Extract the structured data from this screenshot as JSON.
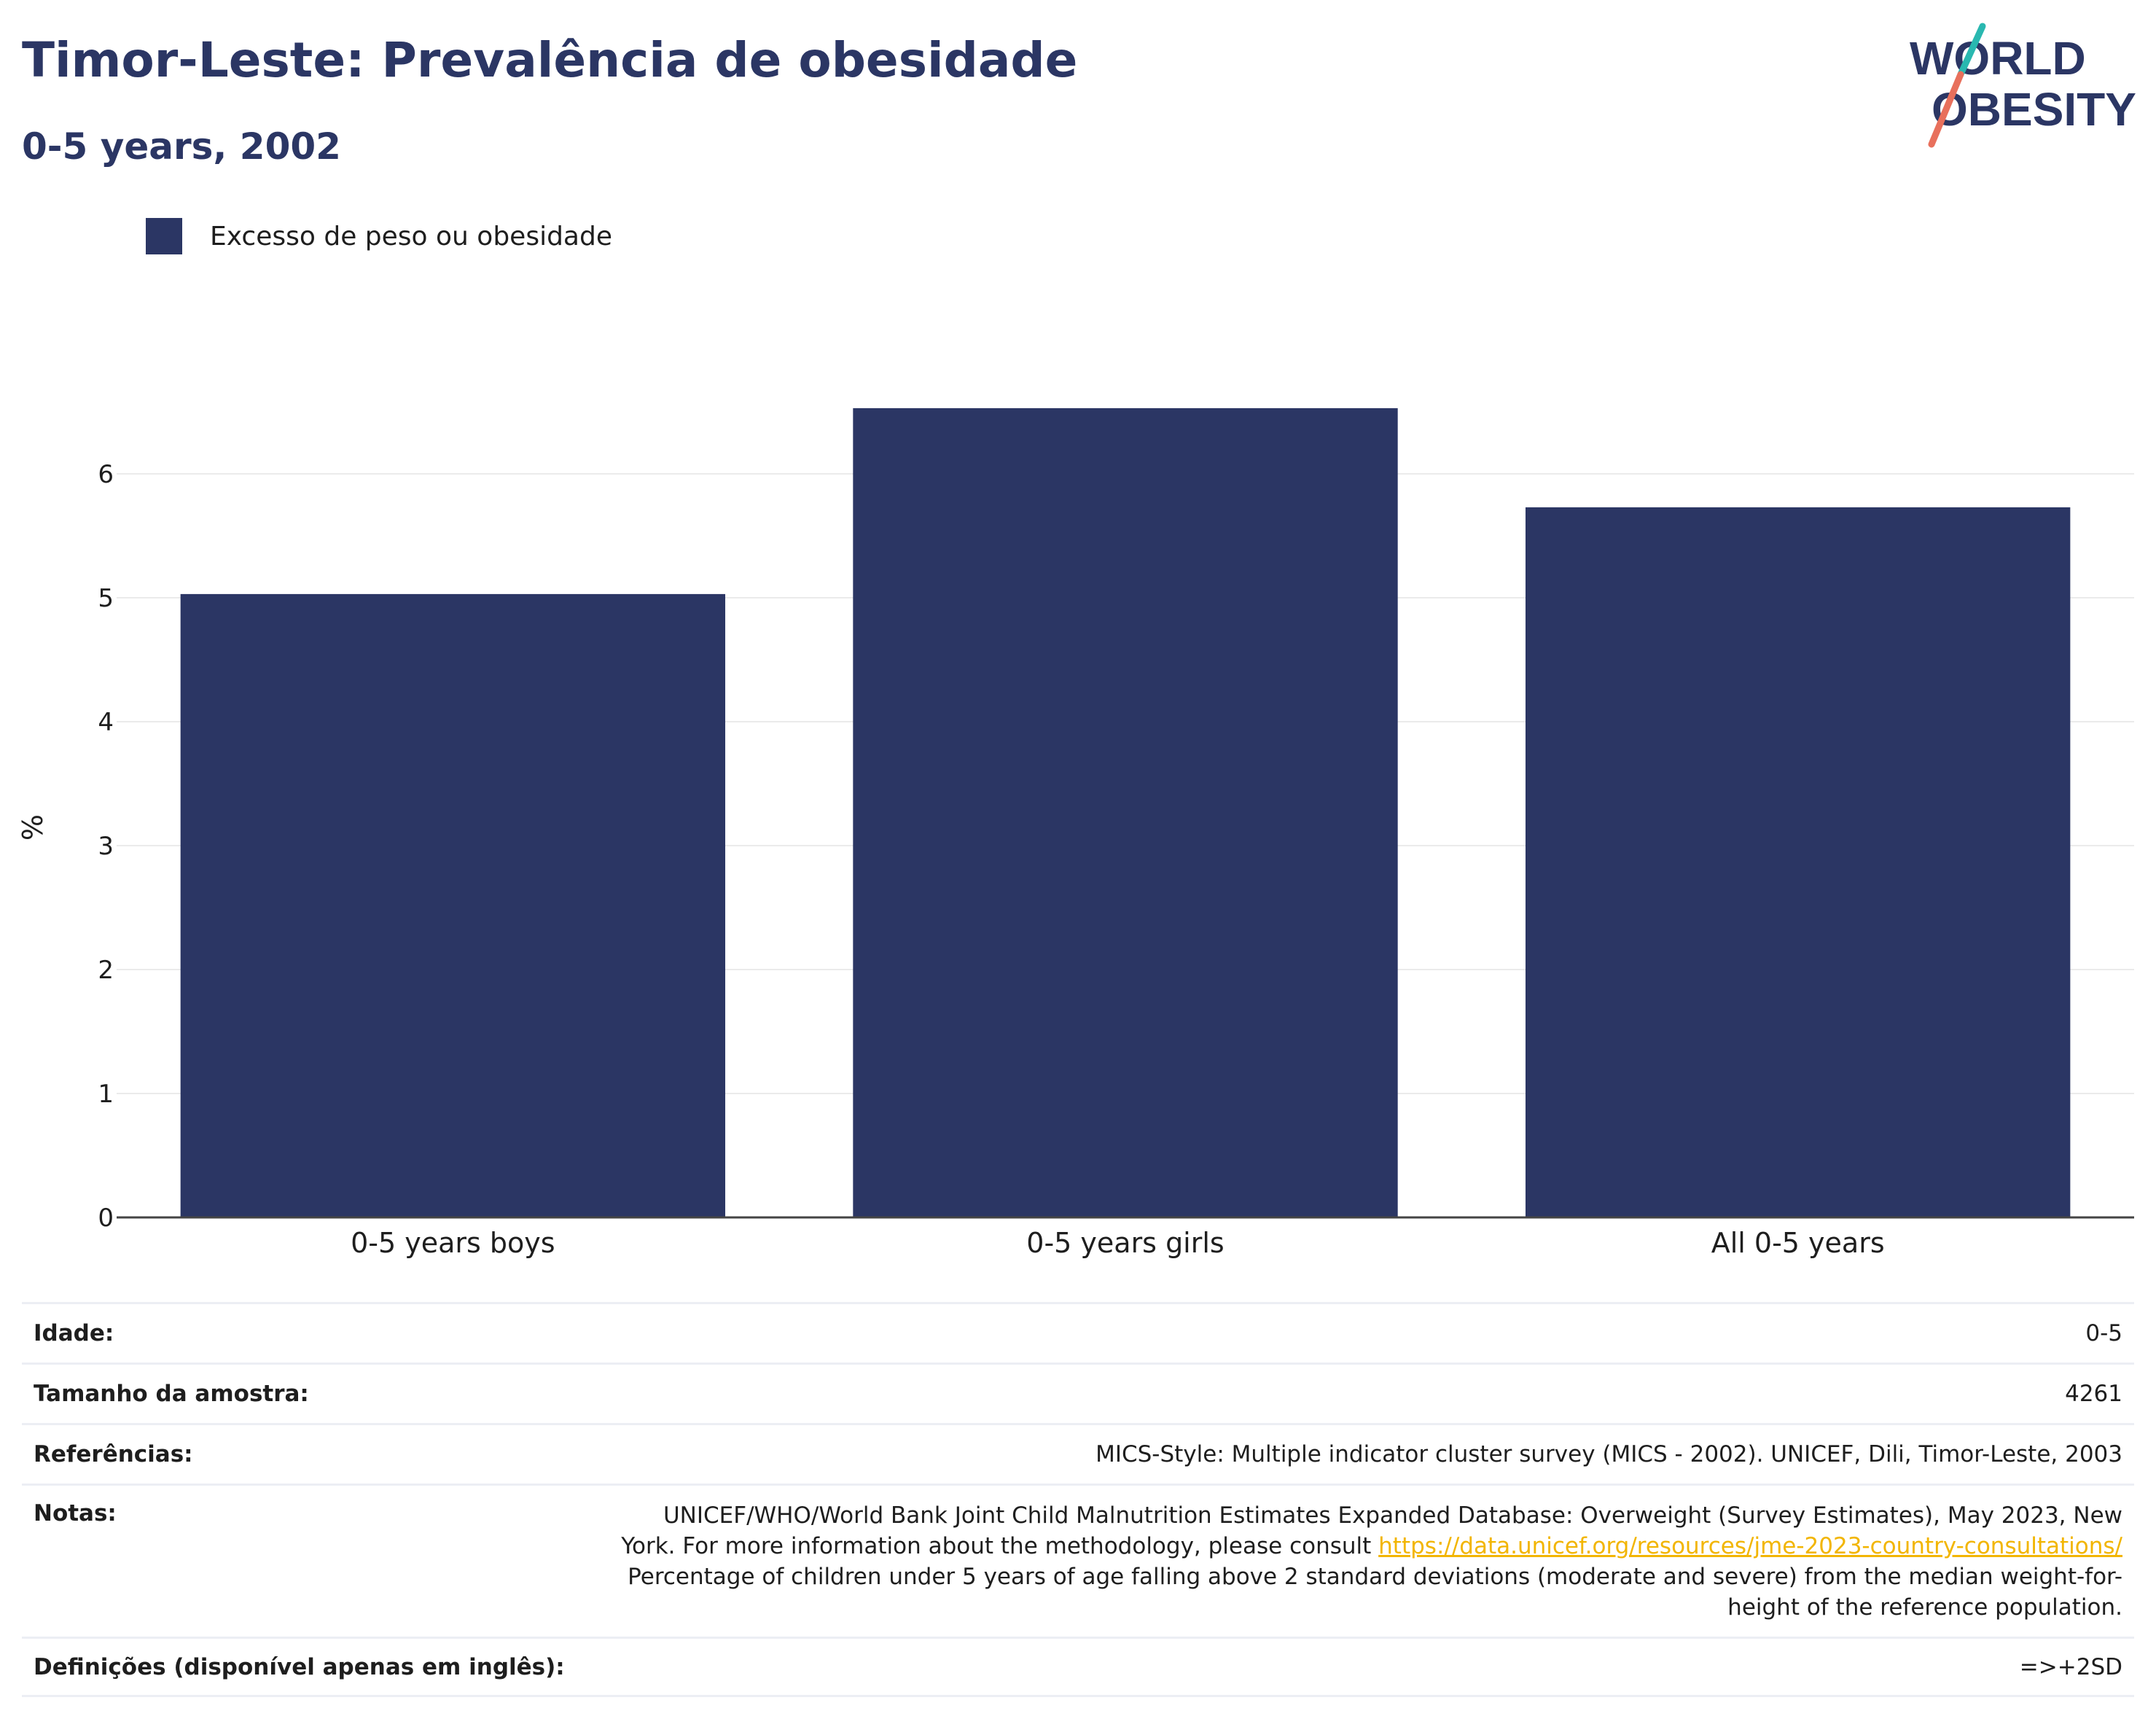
{
  "header": {
    "title": "Timor-Leste: Prevalência de obesidade",
    "subtitle": "0-5 years, 2002"
  },
  "logo": {
    "line1": "WORLD",
    "line2": "OBESITY"
  },
  "colors": {
    "bar": "#2b3664",
    "title": "#2b3664",
    "link": "#f2b500",
    "grid": "#ebebeb"
  },
  "chart_data": {
    "type": "bar",
    "categories": [
      "0-5 years boys",
      "0-5 years girls",
      "All 0-5 years"
    ],
    "series": [
      {
        "name": "Excesso de peso ou obesidade",
        "values": [
          5.03,
          6.53,
          5.73
        ]
      }
    ],
    "ylabel": "%",
    "ylim": [
      0,
      7
    ],
    "yticks": [
      0,
      1,
      2,
      3,
      4,
      5,
      6
    ],
    "grid": true,
    "legend_position": "top-left"
  },
  "info": {
    "idade_label": "Idade:",
    "idade_value": "0-5",
    "sample_label": "Tamanho da amostra:",
    "sample_value": "4261",
    "ref_label": "Referências:",
    "ref_value": "MICS-Style: Multiple indicator cluster survey (MICS - 2002). UNICEF, Dili, Timor-Leste, 2003",
    "notes_label": "Notas:",
    "notes_text_1": "UNICEF/WHO/World Bank Joint Child Malnutrition Estimates Expanded Database: Overweight (Survey Estimates), May 2023, New York. For more information about the methodology, please consult",
    "notes_link": "https://data.unicef.org/resources/jme-2023-country-consultations/",
    "notes_text_2": "Percentage of children under 5 years of age falling above 2 standard deviations (moderate and severe) from the median weight-for-height of the reference population.",
    "def_label": "Definições (disponível apenas em inglês):",
    "def_value": "=>+2SD"
  }
}
